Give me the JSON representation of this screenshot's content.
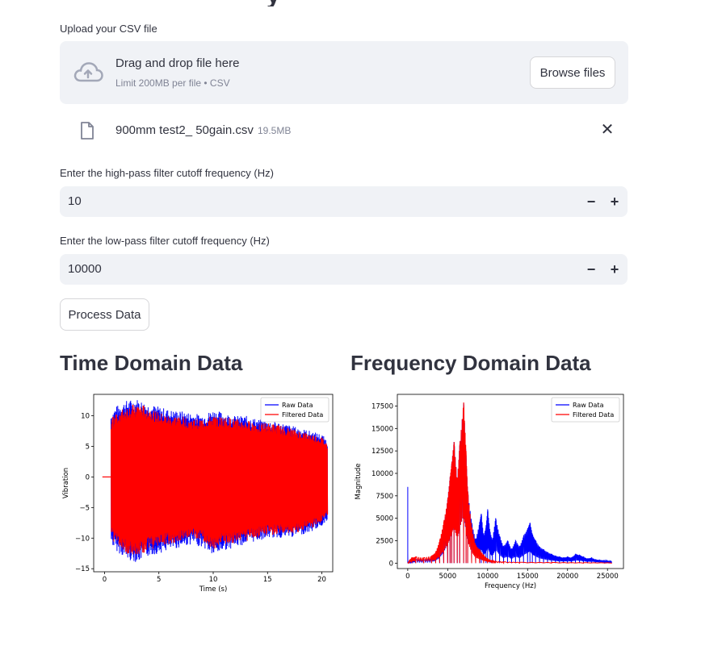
{
  "page": {
    "title_fragment": "y"
  },
  "upload": {
    "label": "Upload your CSV file",
    "drag_text": "Drag and drop file here",
    "limit_text": "Limit 200MB per file • CSV",
    "browse_label": "Browse files",
    "file": {
      "name": "900mm test2_ 50gain.csv",
      "size": "19.5MB"
    }
  },
  "highpass": {
    "label": "Enter the high-pass filter cutoff frequency (Hz)",
    "value": "10"
  },
  "lowpass": {
    "label": "Enter the low-pass filter cutoff frequency (Hz)",
    "value": "10000"
  },
  "stepper": {
    "minus": "−",
    "plus": "+"
  },
  "process_button": "Process Data",
  "close_glyph": "✕",
  "colors": {
    "raw": "#0000FF",
    "filtered": "#FF0000",
    "accent": "#31333F"
  },
  "time_section": {
    "heading": "Time Domain Data"
  },
  "freq_section": {
    "heading": "Frequency Domain Data"
  },
  "chart_data": [
    {
      "type": "line",
      "xlabel": "Time (s)",
      "ylabel": "Vibration",
      "xlim": [
        -1,
        21
      ],
      "ylim": [
        -15.5,
        13.5
      ],
      "xticks": [
        0,
        5,
        10,
        15,
        20
      ],
      "yticks": [
        -15,
        -10,
        -5,
        0,
        5,
        10
      ],
      "legend": "top-right",
      "series": [
        {
          "name": "Raw Data",
          "color": "#0000FF",
          "envelope": {
            "x": [
              0.6,
              1,
              2,
              3,
              4,
              5,
              6,
              7,
              8,
              9,
              10,
              11,
              12,
              13,
              14,
              15,
              16,
              17,
              18,
              19,
              20,
              20.5
            ],
            "upper": [
              10.5,
              11.5,
              12.5,
              12.8,
              12,
              11.5,
              11,
              10.8,
              10.5,
              10.2,
              11,
              10.5,
              10,
              10,
              9.5,
              9.2,
              9,
              8.5,
              8,
              7.5,
              7,
              6
            ],
            "lower": [
              -11,
              -12,
              -13.5,
              -14,
              -13,
              -12.5,
              -12,
              -11.5,
              -11,
              -11.5,
              -13,
              -12,
              -11.5,
              -11,
              -10.5,
              -10,
              -10,
              -10,
              -9.5,
              -9,
              -8,
              -7
            ]
          }
        },
        {
          "name": "Filtered Data",
          "color": "#FF0000",
          "envelope": {
            "x": [
              0.6,
              1,
              2,
              3,
              4,
              5,
              6,
              7,
              8,
              9,
              10,
              11,
              12,
              13,
              14,
              15,
              16,
              17,
              18,
              19,
              20,
              20.5
            ],
            "upper": [
              9.5,
              10.5,
              11.5,
              12,
              11.5,
              10.5,
              10,
              10,
              9.5,
              9.5,
              10,
              9.8,
              9.5,
              9.2,
              9,
              8.8,
              8.5,
              8,
              7.5,
              7,
              6.5,
              5.5
            ],
            "lower": [
              -10,
              -11,
              -12.5,
              -13,
              -12,
              -11.5,
              -11,
              -10.5,
              -10,
              -10.5,
              -12,
              -11,
              -10.8,
              -10.5,
              -10,
              -9.5,
              -9.5,
              -9.5,
              -9,
              -8.5,
              -7.5,
              -6.5
            ]
          }
        }
      ]
    },
    {
      "type": "line",
      "xlabel": "Frequency (Hz)",
      "ylabel": "Magnitude",
      "xlim": [
        -1300,
        27000
      ],
      "ylim": [
        -600,
        18800
      ],
      "xticks": [
        0,
        5000,
        10000,
        15000,
        20000,
        25000
      ],
      "yticks": [
        0,
        2500,
        5000,
        7500,
        10000,
        12500,
        15000,
        17500
      ],
      "legend": "top-right",
      "series": [
        {
          "name": "Raw Data",
          "color": "#0000FF",
          "x": [
            0,
            10,
            20,
            30,
            500,
            1000,
            2000,
            3000,
            3500,
            4000,
            4500,
            5000,
            5300,
            5500,
            5800,
            6200,
            6500,
            7000,
            7300,
            7500,
            8000,
            8500,
            9000,
            9200,
            9500,
            9800,
            10000,
            10300,
            10600,
            11000,
            11500,
            12000,
            12500,
            13000,
            13500,
            14000,
            14500,
            15000,
            15300,
            15600,
            16000,
            16500,
            17000,
            17500,
            18000,
            18500,
            19000,
            19500,
            20000,
            20500,
            21000,
            21500,
            22000,
            22500,
            23000,
            23500,
            24000,
            24500,
            25000,
            25500
          ],
          "y": [
            8500,
            200,
            150,
            100,
            300,
            400,
            350,
            500,
            900,
            2000,
            4000,
            7000,
            9500,
            11000,
            13500,
            9000,
            13000,
            17800,
            12000,
            8000,
            4500,
            2500,
            4500,
            5500,
            3000,
            4000,
            6000,
            3500,
            2500,
            5000,
            3000,
            1800,
            2500,
            1500,
            2500,
            1800,
            3000,
            3800,
            4500,
            3200,
            2500,
            1800,
            1500,
            1200,
            1000,
            800,
            700,
            600,
            700,
            600,
            1000,
            900,
            700,
            500,
            600,
            400,
            350,
            300,
            250,
            200
          ]
        },
        {
          "name": "Filtered Data",
          "color": "#FF0000",
          "x": [
            0,
            100,
            200,
            500,
            1000,
            2000,
            3000,
            3500,
            4000,
            4500,
            5000,
            5300,
            5500,
            5800,
            6200,
            6500,
            7000,
            7300,
            7500,
            8000,
            8500,
            9000,
            9500,
            10000,
            10500,
            11000,
            12000,
            14000,
            18000,
            22000,
            25500
          ],
          "y": [
            0,
            100,
            300,
            600,
            700,
            600,
            800,
            1200,
            2500,
            4500,
            7000,
            9500,
            11000,
            13500,
            9000,
            13000,
            17900,
            12500,
            8000,
            4000,
            2000,
            1500,
            900,
            500,
            300,
            200,
            150,
            100,
            80,
            60,
            50
          ]
        }
      ]
    }
  ]
}
